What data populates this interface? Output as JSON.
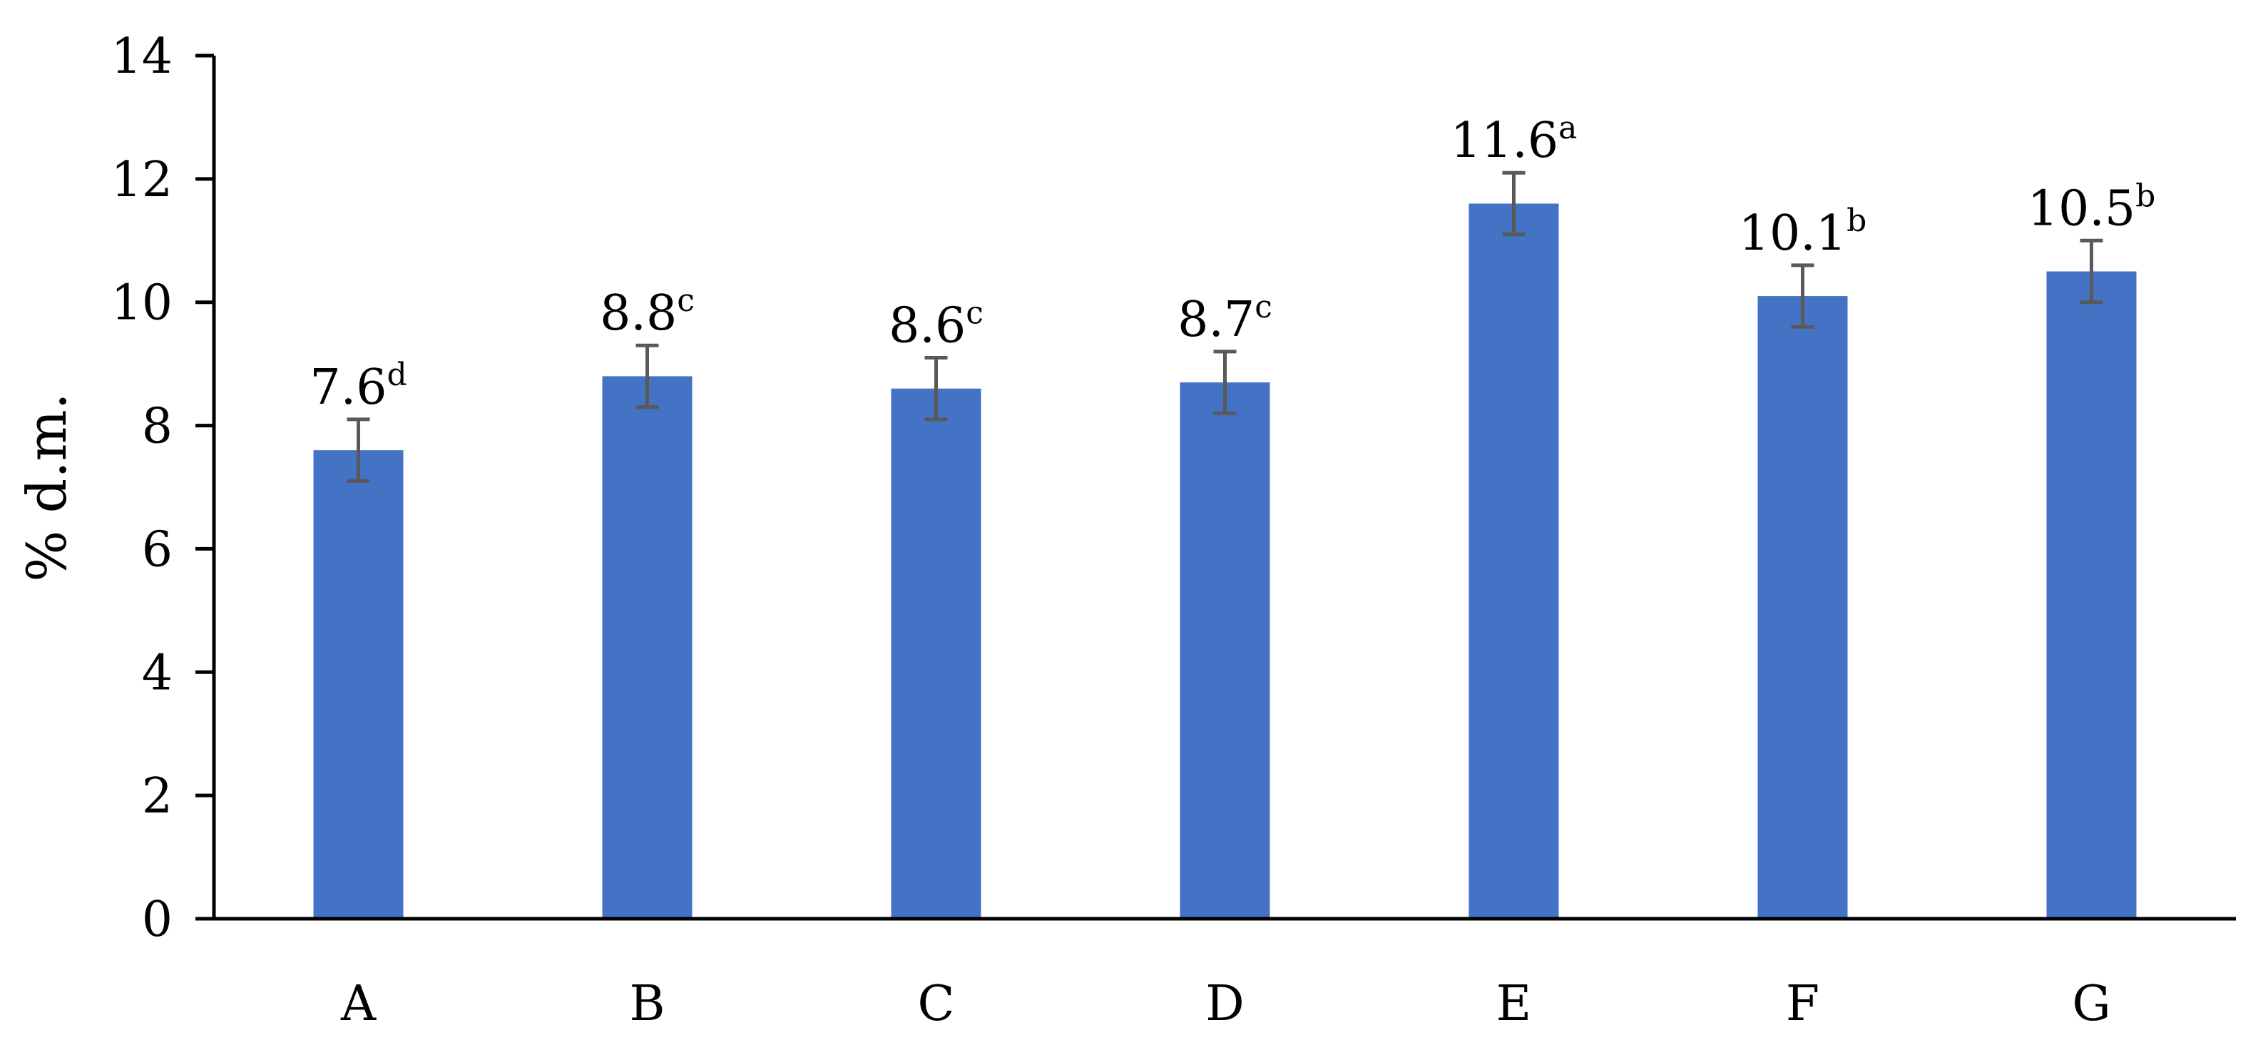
{
  "chart_data": {
    "type": "bar",
    "categories": [
      "A",
      "B",
      "C",
      "D",
      "E",
      "F",
      "G"
    ],
    "values": [
      7.6,
      8.8,
      8.6,
      8.7,
      11.6,
      10.1,
      10.5
    ],
    "error": [
      0.5,
      0.5,
      0.5,
      0.5,
      0.5,
      0.5,
      0.5
    ],
    "significance_letters": [
      "d",
      "c",
      "c",
      "c",
      "a",
      "b",
      "b"
    ],
    "data_labels": [
      "7.6",
      "8.8",
      "8.6",
      "8.7",
      "11.6",
      "10.1",
      "10.5"
    ],
    "ylabel": "% d.m.",
    "xlabel": "",
    "title": "",
    "ylim": [
      0,
      14
    ],
    "yticks": [
      0,
      2,
      4,
      6,
      8,
      10,
      12,
      14
    ],
    "ytick_labels": [
      "0",
      "2",
      "4",
      "6",
      "8",
      "10",
      "12",
      "14"
    ],
    "grid": false,
    "legend": "none",
    "colors": {
      "bar": "#4472C4",
      "error_bar": "#595959",
      "axis": "#000000"
    }
  }
}
